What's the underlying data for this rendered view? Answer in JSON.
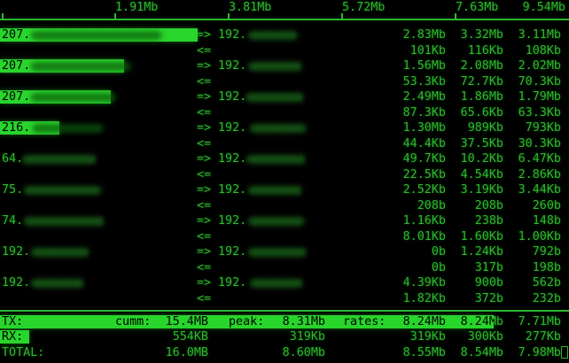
{
  "scale": {
    "labels": [
      "1.91Mb",
      "3.81Mb",
      "5.72Mb",
      "7.63Mb",
      "9.54Mb"
    ],
    "max_mb": 9.54
  },
  "arrows": {
    "out": "=>",
    "in": "<="
  },
  "connections": [
    {
      "local": "207.",
      "remote": "192.",
      "tx": [
        "2.83Mb",
        "3.32Mb",
        "3.11Mb"
      ],
      "rx": [
        "101Kb",
        "116Kb",
        "108Kb"
      ]
    },
    {
      "local": "207.",
      "remote": "192.",
      "tx": [
        "1.56Mb",
        "2.08Mb",
        "2.02Mb"
      ],
      "rx": [
        "53.3Kb",
        "72.7Kb",
        "70.3Kb"
      ]
    },
    {
      "local": "207.",
      "remote": "192.",
      "tx": [
        "2.49Mb",
        "1.86Mb",
        "1.79Mb"
      ],
      "rx": [
        "87.3Kb",
        "65.6Kb",
        "63.3Kb"
      ]
    },
    {
      "local": "216.",
      "remote": "192.",
      "tx": [
        "1.30Mb",
        "989Kb",
        "793Kb"
      ],
      "rx": [
        "44.4Kb",
        "37.5Kb",
        "30.3Kb"
      ]
    },
    {
      "local": "64.",
      "remote": "192.",
      "tx": [
        "49.7Kb",
        "10.2Kb",
        "6.47Kb"
      ],
      "rx": [
        "22.5Kb",
        "4.54Kb",
        "2.86Kb"
      ]
    },
    {
      "local": "75.",
      "remote": "192.",
      "tx": [
        "2.52Kb",
        "3.19Kb",
        "3.44Kb"
      ],
      "rx": [
        "208b",
        "208b",
        "260b"
      ]
    },
    {
      "local": "74.",
      "remote": "192.",
      "tx": [
        "1.16Kb",
        "238b",
        "148b"
      ],
      "rx": [
        "8.01Kb",
        "1.60Kb",
        "1.00Kb"
      ]
    },
    {
      "local": "192.",
      "remote": "192.",
      "tx": [
        "0b",
        "1.24Kb",
        "792b"
      ],
      "rx": [
        "0b",
        "317b",
        "198b"
      ]
    },
    {
      "local": "192.",
      "remote": "192.",
      "tx": [
        "4.39Kb",
        "900b",
        "562b"
      ],
      "rx": [
        "1.82Kb",
        "372b",
        "232b"
      ]
    }
  ],
  "summary": {
    "tx": {
      "label": "TX:",
      "cumm_label": "cumm:",
      "cumm": "15.4MB",
      "peak_label": "peak:",
      "peak": "8.31Mb",
      "rates_label": "rates:",
      "rates": [
        "8.24Mb",
        "8.24Mb",
        "7.71Mb"
      ]
    },
    "rx": {
      "label": "RX:",
      "cumm": "554KB",
      "peak": "319Kb",
      "rates": [
        "319Kb",
        "300Kb",
        "277Kb"
      ]
    },
    "total": {
      "label": "TOTAL:",
      "cumm": "16.0MB",
      "peak": "8.60Mb",
      "rates": [
        "8.55Mb",
        "8.54Mb",
        "7.98Mb"
      ]
    }
  },
  "colors": {
    "text_green": "#2db82d",
    "bar_green": "#28d52b",
    "background": "#000000"
  }
}
